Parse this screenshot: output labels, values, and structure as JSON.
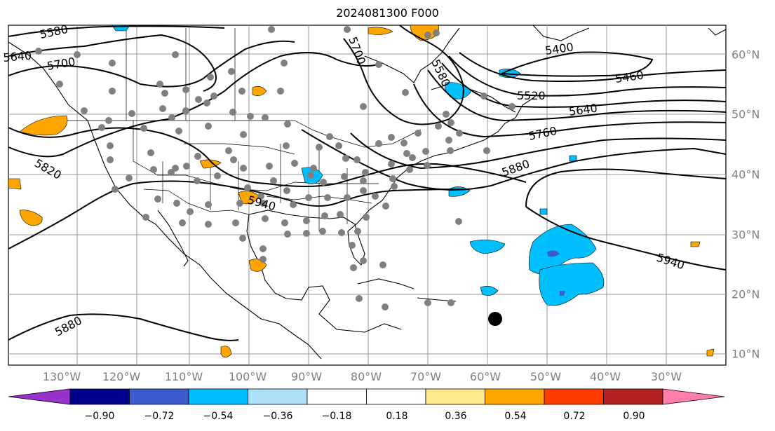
{
  "title": "2024081300 F000",
  "lon_labels": [
    "130°W",
    "120°W",
    "110°W",
    "100°W",
    "90°W",
    "80°W",
    "70°W",
    "60°W",
    "50°W",
    "40°W",
    "30°W"
  ],
  "lat_labels": [
    "60°N",
    "50°N",
    "40°N",
    "30°N",
    "20°N",
    "10°N"
  ],
  "contour_labels": [
    "5580",
    "5640",
    "5700",
    "5700",
    "5580",
    "5400",
    "5460",
    "5520",
    "5640",
    "5760",
    "5880",
    "5820",
    "5940",
    "5940",
    "5880"
  ],
  "colorbar": {
    "ticks": [
      "−0.90",
      "−0.72",
      "−0.54",
      "−0.36",
      "−0.18",
      "0.18",
      "0.36",
      "0.54",
      "0.72",
      "0.90"
    ],
    "colors": [
      "#9932cc",
      "#00008b",
      "#3c5bcd",
      "#00bfff",
      "#ade1fa",
      "#ffffff",
      "#ffe98a",
      "#ffa500",
      "#ff3d00",
      "#b22222",
      "#ff7fa8"
    ]
  }
}
